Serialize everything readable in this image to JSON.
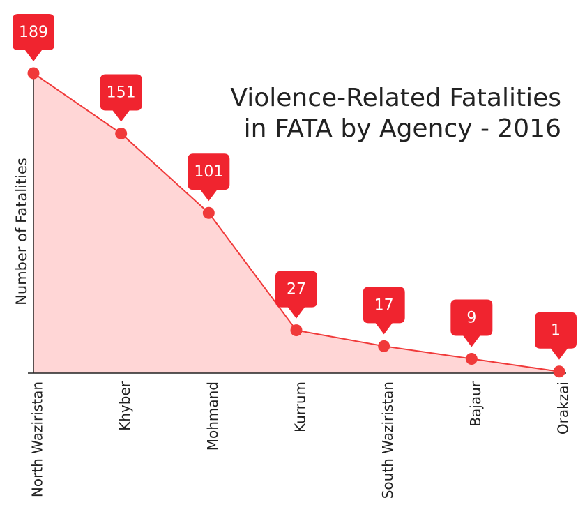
{
  "chart_data": {
    "type": "area",
    "title": [
      "Violence-Related Fatalities",
      "in FATA by Agency - 2016"
    ],
    "y_label": "Number of Fatalities",
    "categories": [
      "North Waziristan",
      "Khyber",
      "Mohmand",
      "Kurrum",
      "South Waziristan",
      "Bajaur",
      "Orakzai"
    ],
    "values": [
      189,
      151,
      101,
      27,
      17,
      9,
      1
    ],
    "color": "#f03a3a",
    "fill_color": "#ffd6d6",
    "label_color": "#f0242f",
    "ylim": [
      0,
      189
    ]
  }
}
